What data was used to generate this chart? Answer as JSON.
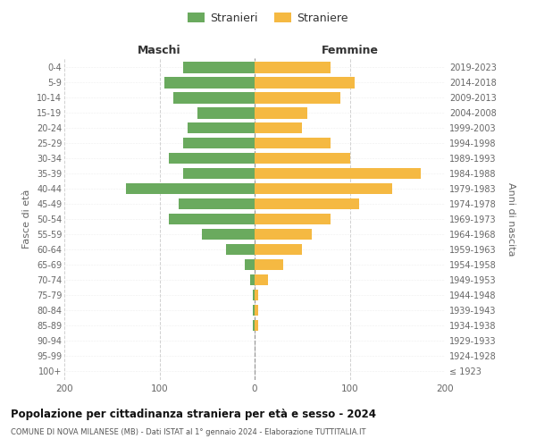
{
  "age_groups": [
    "100+",
    "95-99",
    "90-94",
    "85-89",
    "80-84",
    "75-79",
    "70-74",
    "65-69",
    "60-64",
    "55-59",
    "50-54",
    "45-49",
    "40-44",
    "35-39",
    "30-34",
    "25-29",
    "20-24",
    "15-19",
    "10-14",
    "5-9",
    "0-4"
  ],
  "birth_years": [
    "≤ 1923",
    "1924-1928",
    "1929-1933",
    "1934-1938",
    "1939-1943",
    "1944-1948",
    "1949-1953",
    "1954-1958",
    "1959-1963",
    "1964-1968",
    "1969-1973",
    "1974-1978",
    "1979-1983",
    "1984-1988",
    "1989-1993",
    "1994-1998",
    "1999-2003",
    "2004-2008",
    "2009-2013",
    "2014-2018",
    "2019-2023"
  ],
  "maschi": [
    0,
    0,
    0,
    2,
    2,
    2,
    5,
    10,
    30,
    55,
    90,
    80,
    135,
    75,
    90,
    75,
    70,
    60,
    85,
    95,
    75
  ],
  "femmine": [
    0,
    0,
    0,
    4,
    4,
    4,
    14,
    30,
    50,
    60,
    80,
    110,
    145,
    175,
    100,
    80,
    50,
    55,
    90,
    105,
    80
  ],
  "maschi_color": "#6aaa5e",
  "femmine_color": "#f5b942",
  "title_main": "Popolazione per cittadinanza straniera per età e sesso - 2024",
  "title_sub": "COMUNE DI NOVA MILANESE (MB) - Dati ISTAT al 1° gennaio 2024 - Elaborazione TUTTITALIA.IT",
  "header_left": "Maschi",
  "header_right": "Femmine",
  "ylabel_left": "Fasce di età",
  "ylabel_right": "Anni di nascita",
  "legend_maschi": "Stranieri",
  "legend_femmine": "Straniere",
  "xlim": 200,
  "bg_color": "#ffffff",
  "grid_color": "#d0d0d0",
  "bar_height": 0.75
}
